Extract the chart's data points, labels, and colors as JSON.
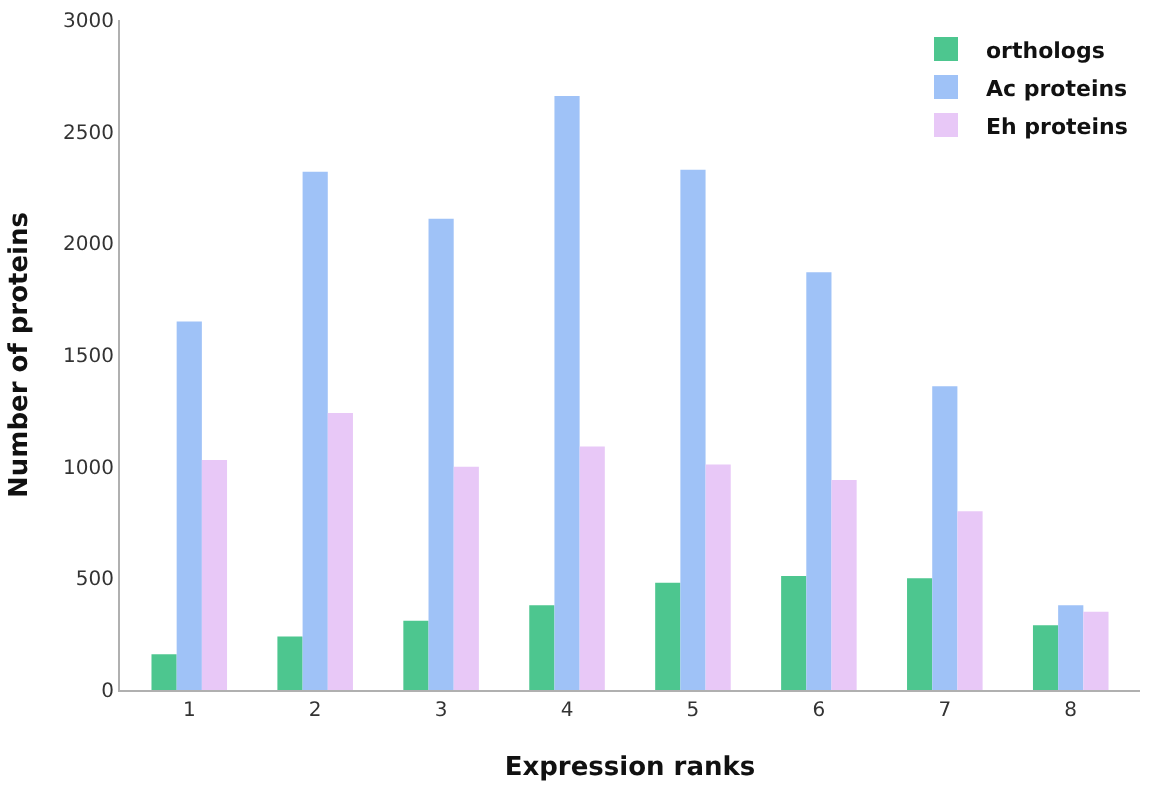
{
  "chart_data": {
    "type": "bar",
    "xlabel": "Expression ranks",
    "ylabel": "Number of proteins",
    "categories": [
      "1",
      "2",
      "3",
      "4",
      "5",
      "6",
      "7",
      "8"
    ],
    "series": [
      {
        "name": "orthologs",
        "color": "#4dc68f",
        "values": [
          160,
          240,
          310,
          380,
          480,
          510,
          500,
          290
        ]
      },
      {
        "name": "Ac proteins",
        "color": "#9fc2f7",
        "values": [
          1650,
          2320,
          2110,
          2660,
          2330,
          1870,
          1360,
          380
        ]
      },
      {
        "name": "Eh proteins",
        "color": "#e8c8f7",
        "values": [
          1030,
          1240,
          1000,
          1090,
          1010,
          940,
          800,
          350
        ]
      }
    ],
    "ylim": [
      0,
      3000
    ],
    "yticks": [
      0,
      500,
      1000,
      1500,
      2000,
      2500,
      3000
    ],
    "legend": "top right"
  }
}
